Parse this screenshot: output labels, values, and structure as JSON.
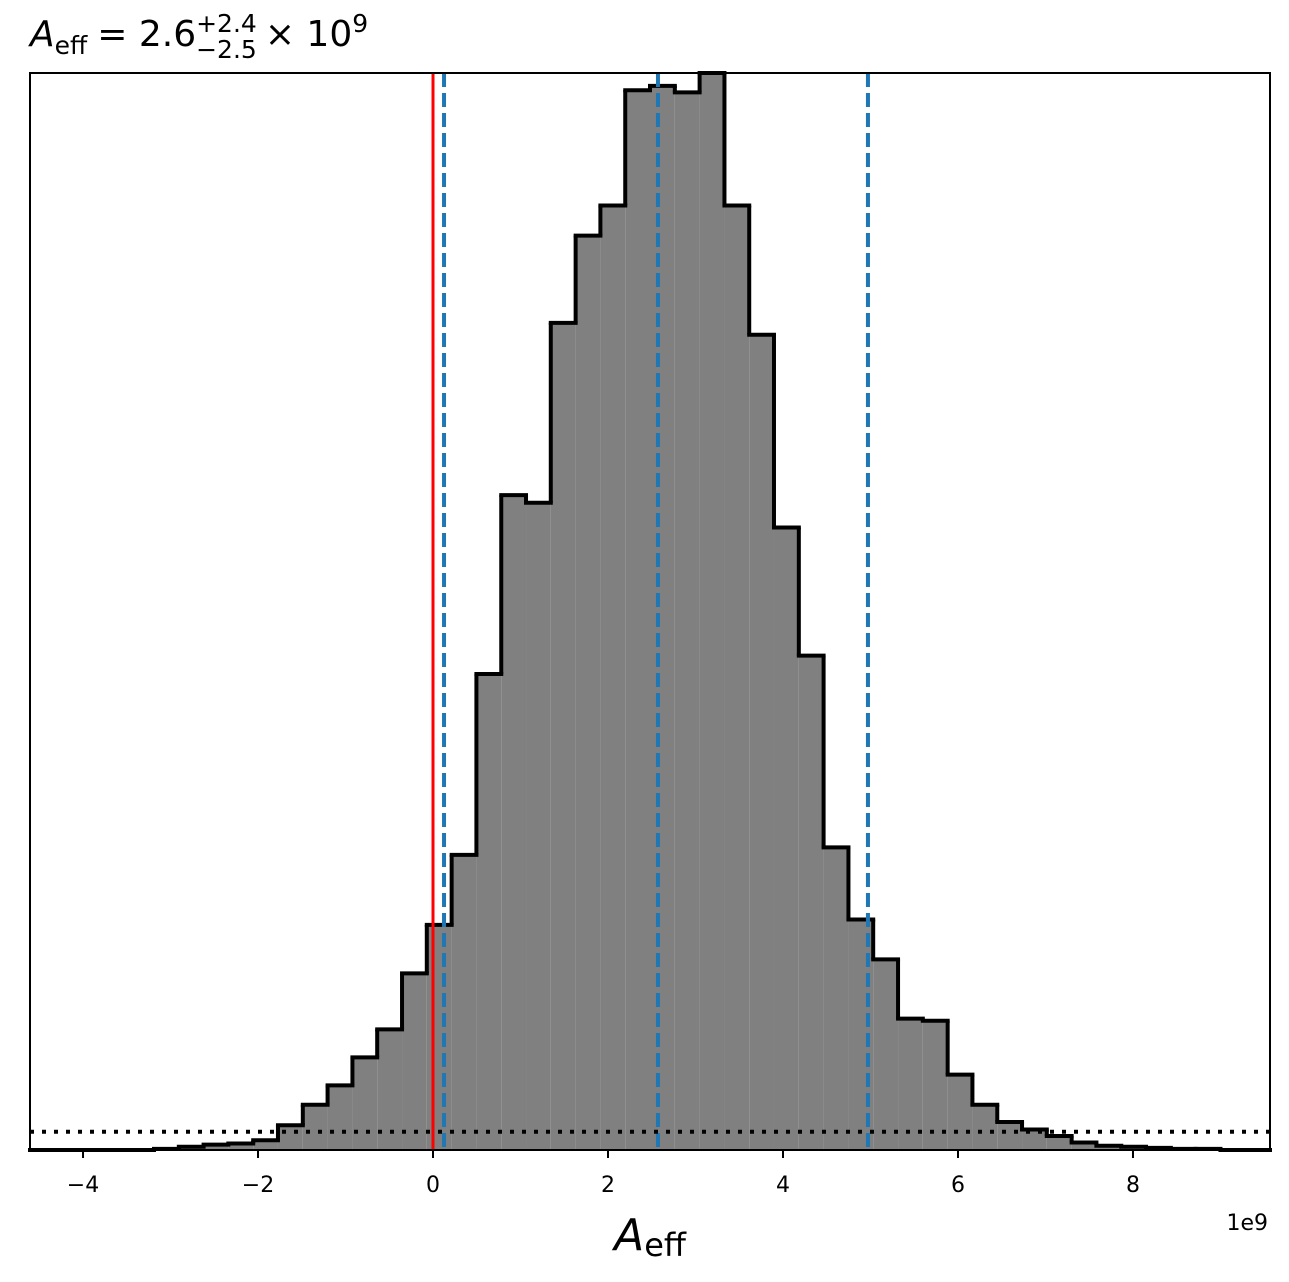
{
  "chart_data": {
    "type": "histogram",
    "title": {
      "symbol": "A",
      "subscript": "eff",
      "equals": "= 2.6",
      "upper": "+2.4",
      "lower": "−2.5",
      "times": "× 10",
      "exponent": "9"
    },
    "xlabel": {
      "symbol": "A",
      "subscript": "eff"
    },
    "x_offset_label": "1e9",
    "bins": [
      -4.606,
      -4.323,
      -4.039,
      -3.756,
      -3.472,
      -3.189,
      -2.905,
      -2.622,
      -2.339,
      -2.055,
      -1.772,
      -1.488,
      -1.205,
      -0.921,
      -0.638,
      -0.354,
      -0.071,
      0.213,
      0.496,
      0.78,
      1.063,
      1.346,
      1.63,
      1.913,
      2.197,
      2.48,
      2.764,
      3.047,
      3.331,
      3.614,
      3.897,
      4.181,
      4.464,
      4.748,
      5.031,
      5.315,
      5.598,
      5.882,
      6.165,
      6.449,
      6.732,
      7.015,
      7.299,
      7.582,
      7.866,
      8.149,
      8.433,
      8.716,
      9.0,
      9.283,
      9.566
    ],
    "values": [
      0,
      0,
      0,
      0,
      0,
      1,
      3,
      5,
      6,
      9,
      23,
      42,
      60,
      86,
      112,
      164,
      209,
      274,
      442,
      608,
      601,
      768,
      849,
      877,
      984,
      988,
      982,
      1000,
      877,
      757,
      578,
      459,
      281,
      214,
      177,
      122,
      120,
      70,
      42,
      26,
      19,
      13,
      7,
      4,
      3,
      2,
      1,
      1,
      0,
      0
    ],
    "color": "#808080",
    "edge_color": "#000000",
    "xlim": [
      -4.606,
      9.566
    ],
    "ylim": [
      0,
      1000
    ],
    "xticks": [
      {
        "value": -4,
        "label": "−4"
      },
      {
        "value": -2,
        "label": "−2"
      },
      0,
      2,
      4,
      6,
      8
    ],
    "reference_line": {
      "x": 0,
      "color": "#ff0000"
    },
    "quantile_lines": {
      "x": [
        0.126,
        2.571,
        4.971
      ],
      "color": "#1f77b4"
    },
    "threshold_line": {
      "y": 17,
      "color": "#000000"
    }
  }
}
